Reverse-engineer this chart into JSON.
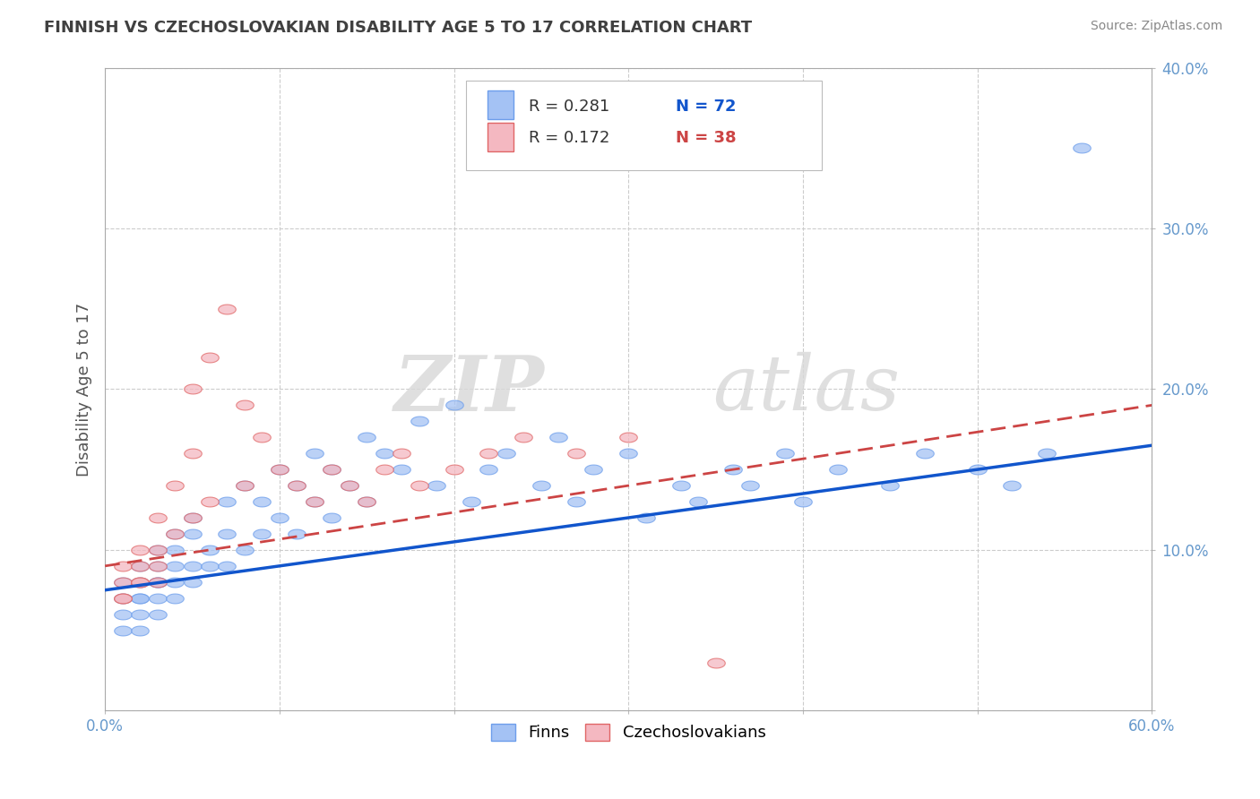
{
  "title": "FINNISH VS CZECHOSLOVAKIAN DISABILITY AGE 5 TO 17 CORRELATION CHART",
  "source": "Source: ZipAtlas.com",
  "ylabel": "Disability Age 5 to 17",
  "xlim": [
    0.0,
    0.6
  ],
  "ylim": [
    0.0,
    0.4
  ],
  "xticks": [
    0.0,
    0.1,
    0.2,
    0.3,
    0.4,
    0.5,
    0.6
  ],
  "yticks": [
    0.0,
    0.1,
    0.2,
    0.3,
    0.4
  ],
  "ytick_labels_right": [
    "",
    "10.0%",
    "20.0%",
    "30.0%",
    "40.0%"
  ],
  "xtick_labels": [
    "0.0%",
    "",
    "",
    "",
    "",
    "",
    "60.0%"
  ],
  "legend_r1": "R = 0.281",
  "legend_n1": "N = 72",
  "legend_r2": "R = 0.172",
  "legend_n2": "N = 38",
  "blue_color": "#a4c2f4",
  "pink_color": "#f4b8c1",
  "blue_edge_color": "#6d9eeb",
  "pink_edge_color": "#e06666",
  "blue_line_color": "#1155cc",
  "pink_line_color": "#cc4444",
  "watermark": "ZIPatlas",
  "background_color": "#ffffff",
  "grid_color": "#cccccc",
  "title_color": "#404040",
  "axis_label_color": "#555555",
  "tick_color": "#6699cc",
  "legend_r_color": "#333333",
  "legend_n1_color": "#1155cc",
  "legend_n2_color": "#cc4444",
  "finns_x": [
    0.01,
    0.01,
    0.01,
    0.01,
    0.02,
    0.02,
    0.02,
    0.02,
    0.02,
    0.02,
    0.03,
    0.03,
    0.03,
    0.03,
    0.03,
    0.03,
    0.04,
    0.04,
    0.04,
    0.04,
    0.04,
    0.05,
    0.05,
    0.05,
    0.05,
    0.06,
    0.06,
    0.07,
    0.07,
    0.07,
    0.08,
    0.08,
    0.09,
    0.09,
    0.1,
    0.1,
    0.11,
    0.11,
    0.12,
    0.12,
    0.13,
    0.13,
    0.14,
    0.15,
    0.15,
    0.16,
    0.17,
    0.18,
    0.19,
    0.2,
    0.21,
    0.22,
    0.23,
    0.25,
    0.26,
    0.27,
    0.28,
    0.3,
    0.31,
    0.33,
    0.34,
    0.36,
    0.37,
    0.39,
    0.4,
    0.42,
    0.45,
    0.47,
    0.5,
    0.52,
    0.54,
    0.56
  ],
  "finns_y": [
    0.08,
    0.07,
    0.06,
    0.05,
    0.09,
    0.08,
    0.07,
    0.07,
    0.06,
    0.05,
    0.1,
    0.09,
    0.08,
    0.08,
    0.07,
    0.06,
    0.11,
    0.1,
    0.09,
    0.08,
    0.07,
    0.12,
    0.11,
    0.09,
    0.08,
    0.1,
    0.09,
    0.13,
    0.11,
    0.09,
    0.14,
    0.1,
    0.13,
    0.11,
    0.15,
    0.12,
    0.14,
    0.11,
    0.16,
    0.13,
    0.15,
    0.12,
    0.14,
    0.17,
    0.13,
    0.16,
    0.15,
    0.18,
    0.14,
    0.19,
    0.13,
    0.15,
    0.16,
    0.14,
    0.17,
    0.13,
    0.15,
    0.16,
    0.12,
    0.14,
    0.13,
    0.15,
    0.14,
    0.16,
    0.13,
    0.15,
    0.14,
    0.16,
    0.15,
    0.14,
    0.16,
    0.35
  ],
  "czech_x": [
    0.01,
    0.01,
    0.01,
    0.01,
    0.02,
    0.02,
    0.02,
    0.02,
    0.03,
    0.03,
    0.03,
    0.03,
    0.04,
    0.04,
    0.05,
    0.05,
    0.05,
    0.06,
    0.06,
    0.07,
    0.08,
    0.08,
    0.09,
    0.1,
    0.11,
    0.12,
    0.13,
    0.14,
    0.15,
    0.16,
    0.17,
    0.18,
    0.2,
    0.22,
    0.24,
    0.27,
    0.3,
    0.35
  ],
  "czech_y": [
    0.09,
    0.08,
    0.07,
    0.07,
    0.1,
    0.09,
    0.08,
    0.08,
    0.12,
    0.1,
    0.09,
    0.08,
    0.14,
    0.11,
    0.2,
    0.16,
    0.12,
    0.22,
    0.13,
    0.25,
    0.19,
    0.14,
    0.17,
    0.15,
    0.14,
    0.13,
    0.15,
    0.14,
    0.13,
    0.15,
    0.16,
    0.14,
    0.15,
    0.16,
    0.17,
    0.16,
    0.17,
    0.03
  ],
  "finns_line_x": [
    0.0,
    0.6
  ],
  "finns_line_y": [
    0.075,
    0.165
  ],
  "czech_line_x": [
    0.0,
    0.6
  ],
  "czech_line_y": [
    0.09,
    0.19
  ]
}
